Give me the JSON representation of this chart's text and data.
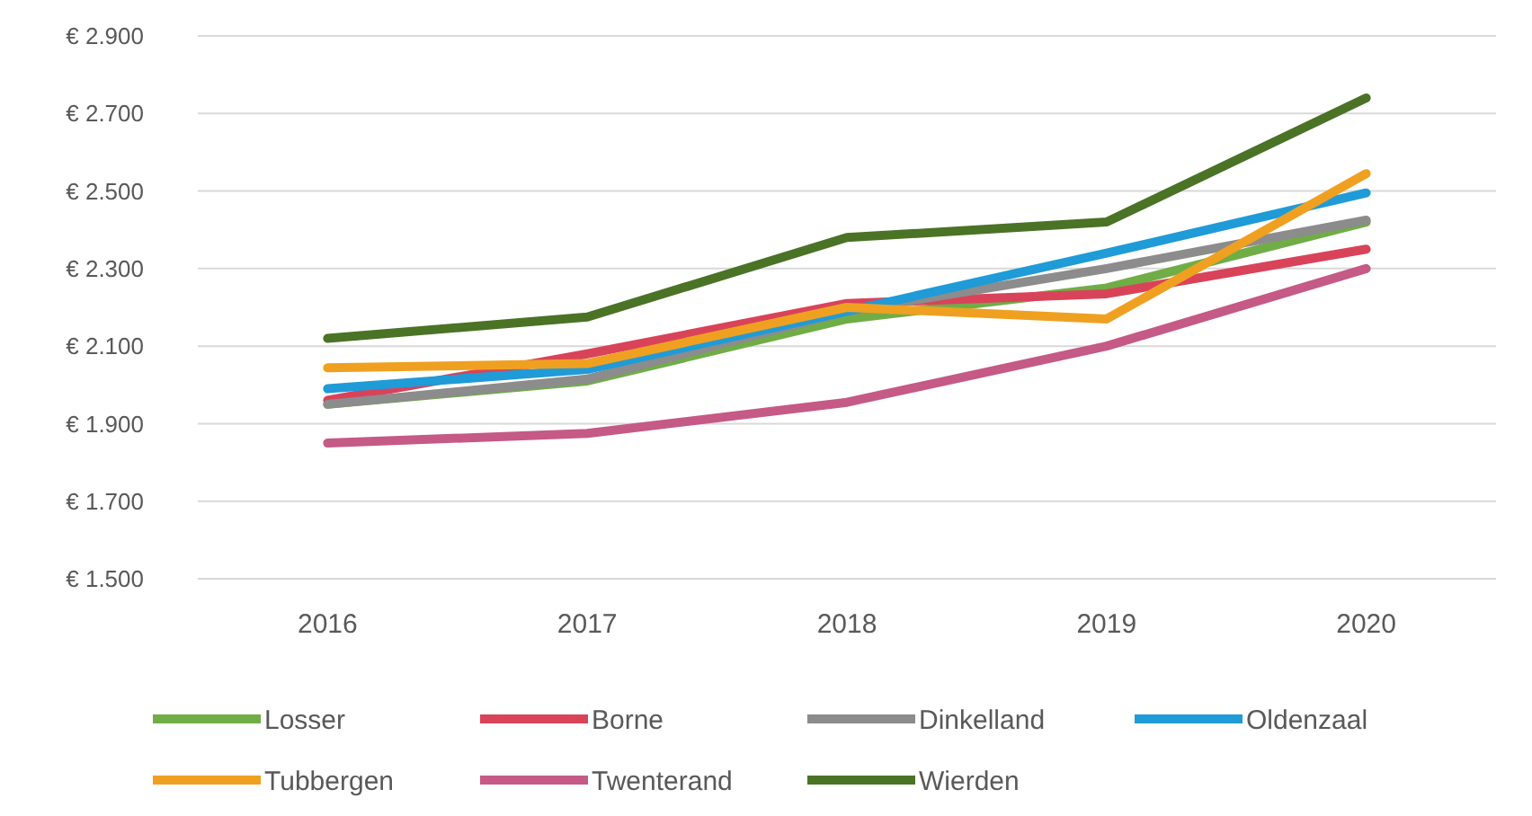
{
  "chart_data": {
    "type": "line",
    "categories": [
      "2016",
      "2017",
      "2018",
      "2019",
      "2020"
    ],
    "series": [
      {
        "name": "Losser",
        "color": "#70ad47",
        "values": [
          1950,
          2010,
          2170,
          2250,
          2420
        ]
      },
      {
        "name": "Borne",
        "color": "#d9435a",
        "values": [
          1960,
          2080,
          2210,
          2235,
          2350
        ]
      },
      {
        "name": "Dinkelland",
        "color": "#8c8c8c",
        "values": [
          1950,
          2015,
          2190,
          2300,
          2425
        ]
      },
      {
        "name": "Oldenzaal",
        "color": "#1f9bd7",
        "values": [
          1990,
          2040,
          2190,
          2340,
          2495
        ]
      },
      {
        "name": "Tubbergen",
        "color": "#f0a020",
        "values": [
          2044,
          2055,
          2200,
          2170,
          2545
        ]
      },
      {
        "name": "Twenterand",
        "color": "#c55a86",
        "values": [
          1850,
          1875,
          1955,
          2100,
          2300
        ]
      },
      {
        "name": "Wierden",
        "color": "#4a7326",
        "values": [
          2120,
          2175,
          2380,
          2420,
          2740
        ]
      }
    ],
    "ylim": [
      1500,
      2900
    ],
    "yticks": [
      {
        "value": 1500,
        "label": "€ 1.500"
      },
      {
        "value": 1700,
        "label": "€ 1.700"
      },
      {
        "value": 1900,
        "label": "€ 1.900"
      },
      {
        "value": 2100,
        "label": "€ 2.100"
      },
      {
        "value": 2300,
        "label": "€ 2.300"
      },
      {
        "value": 2500,
        "label": "€ 2.500"
      },
      {
        "value": 2700,
        "label": "€ 2.700"
      },
      {
        "value": 2900,
        "label": "€ 2.900"
      }
    ],
    "grid": "y",
    "legend": "bottom",
    "line_style": "solid",
    "marker": "none"
  }
}
